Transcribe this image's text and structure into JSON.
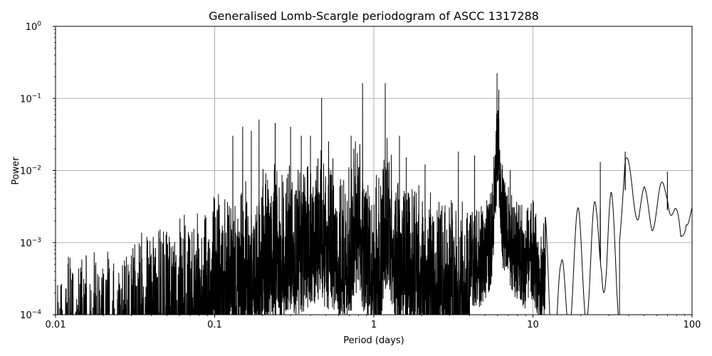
{
  "chart_data": {
    "type": "line",
    "title": "Generalised Lomb-Scargle periodogram of ASCC 1317288",
    "xlabel": "Period (days)",
    "ylabel": "Power",
    "xscale": "log",
    "yscale": "log",
    "xlim": [
      0.01,
      100
    ],
    "ylim": [
      0.0001,
      1
    ],
    "grid": true,
    "line_color": "#000000",
    "grid_color": "#b0b0b0",
    "x_ticks": [
      {
        "value": 0.01,
        "label": "0.01"
      },
      {
        "value": 0.1,
        "label": "0.1"
      },
      {
        "value": 1,
        "label": "1"
      },
      {
        "value": 10,
        "label": "10"
      },
      {
        "value": 100,
        "label": "100"
      }
    ],
    "y_ticks": [
      {
        "value": 0.0001,
        "base": "10",
        "exp": "−4"
      },
      {
        "value": 0.001,
        "base": "10",
        "exp": "−3"
      },
      {
        "value": 0.01,
        "base": "10",
        "exp": "−2"
      },
      {
        "value": 0.1,
        "base": "10",
        "exp": "−1"
      },
      {
        "value": 1,
        "base": "10",
        "exp": "0"
      }
    ],
    "series": [
      {
        "x": [
          0.01,
          0.012,
          0.015,
          0.02,
          0.025,
          0.03,
          0.035,
          0.04,
          0.05,
          0.06,
          0.07,
          0.08,
          0.09,
          0.1,
          0.12,
          0.15,
          0.17,
          0.2,
          0.23,
          0.26,
          0.3,
          0.35,
          0.4,
          0.45,
          0.5,
          0.55,
          0.6,
          0.7,
          0.8,
          0.9,
          1.0,
          1.1,
          1.2,
          1.4,
          1.6,
          1.8,
          2.0,
          2.3,
          2.6,
          3.0,
          3.5,
          4.0,
          4.5,
          5.0,
          5.5,
          6.0,
          6.5,
          7.0,
          8.0,
          9.0,
          10.0,
          11.0,
          12.0,
          13.0,
          15.0,
          17.0,
          19.0,
          21.0,
          23.0,
          25.0,
          27.0,
          29.0,
          31.0,
          33.0,
          35.0,
          38.0,
          42.0,
          46.0,
          50.0,
          56.0,
          62.0,
          70.0,
          78.0,
          85.0,
          92.0,
          100.0
        ],
        "envelope": [
          0.0006,
          0.0007,
          0.0008,
          0.0008,
          0.0009,
          0.0012,
          0.0015,
          0.0015,
          0.0019,
          0.0022,
          0.0028,
          0.003,
          0.0035,
          0.005,
          0.0055,
          0.007,
          0.008,
          0.012,
          0.013,
          0.012,
          0.016,
          0.015,
          0.02,
          0.025,
          0.018,
          0.02,
          0.015,
          0.014,
          0.04,
          0.01,
          0.008,
          0.01,
          0.04,
          0.01,
          0.009,
          0.008,
          0.007,
          0.005,
          0.005,
          0.004,
          0.004,
          0.0035,
          0.003,
          0.004,
          0.006,
          0.15,
          0.01,
          0.006,
          0.004,
          0.003,
          0.004,
          0.002,
          0.0025,
          0.001,
          0.0005,
          0.003,
          0.003,
          0.0035,
          0.003,
          0.004,
          0.013,
          0.004,
          0.005,
          0.004,
          0.003,
          0.018,
          0.01,
          0.005,
          0.006,
          0.004,
          0.006,
          0.0095,
          0.004,
          0.0016,
          0.005,
          0.0038
        ],
        "peaks": [
          {
            "x": 0.19,
            "y": 0.05
          },
          {
            "x": 0.15,
            "y": 0.04
          },
          {
            "x": 0.24,
            "y": 0.045
          },
          {
            "x": 0.3,
            "y": 0.04
          },
          {
            "x": 0.4,
            "y": 0.03
          },
          {
            "x": 0.47,
            "y": 0.1
          },
          {
            "x": 0.52,
            "y": 0.025
          },
          {
            "x": 0.85,
            "y": 0.16
          },
          {
            "x": 1.18,
            "y": 0.16
          },
          {
            "x": 0.72,
            "y": 0.03
          },
          {
            "x": 5.95,
            "y": 0.22
          },
          {
            "x": 6.1,
            "y": 0.13
          },
          {
            "x": 3.4,
            "y": 0.018
          },
          {
            "x": 4.3,
            "y": 0.016
          },
          {
            "x": 26.5,
            "y": 0.013
          },
          {
            "x": 38.0,
            "y": 0.018
          },
          {
            "x": 70.0,
            "y": 0.0095
          },
          {
            "x": 0.13,
            "y": 0.03
          },
          {
            "x": 0.17,
            "y": 0.035
          },
          {
            "x": 0.35,
            "y": 0.03
          },
          {
            "x": 1.45,
            "y": 0.03
          },
          {
            "x": 1.6,
            "y": 0.015
          },
          {
            "x": 2.1,
            "y": 0.012
          },
          {
            "x": 7.2,
            "y": 0.01
          }
        ]
      }
    ]
  }
}
